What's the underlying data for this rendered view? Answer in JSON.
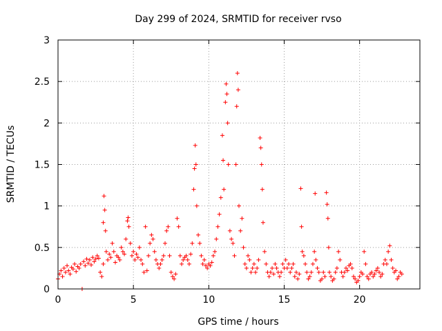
{
  "chart_data": {
    "type": "scatter",
    "title": "Day 299 of 2024, SRMTID for receiver rvso",
    "xlabel": "GPS time / hours",
    "ylabel": "SRMTID / TECUs",
    "xlim": [
      0,
      24
    ],
    "ylim": [
      0,
      3
    ],
    "xticks": [
      0,
      5,
      10,
      15,
      20
    ],
    "yticks": [
      0,
      0.5,
      1,
      1.5,
      2,
      2.5,
      3
    ],
    "xtick_labels": [
      "0",
      "5",
      "10",
      "15",
      "20"
    ],
    "ytick_labels": [
      "0",
      "0.5",
      "1",
      "1.5",
      "2",
      "2.5",
      "3"
    ],
    "grid": true,
    "marker": "plus",
    "color": "#ff0000",
    "series": [
      {
        "name": "SRMTID",
        "points": [
          [
            0.0,
            0.12
          ],
          [
            0.1,
            0.18
          ],
          [
            0.2,
            0.22
          ],
          [
            0.3,
            0.15
          ],
          [
            0.4,
            0.25
          ],
          [
            0.5,
            0.2
          ],
          [
            0.6,
            0.28
          ],
          [
            0.7,
            0.22
          ],
          [
            0.8,
            0.18
          ],
          [
            0.9,
            0.26
          ],
          [
            1.0,
            0.24
          ],
          [
            1.1,
            0.3
          ],
          [
            1.2,
            0.21
          ],
          [
            1.3,
            0.27
          ],
          [
            1.4,
            0.25
          ],
          [
            1.5,
            0.3
          ],
          [
            1.6,
            0.0
          ],
          [
            1.7,
            0.33
          ],
          [
            1.8,
            0.28
          ],
          [
            1.9,
            0.36
          ],
          [
            2.0,
            0.31
          ],
          [
            2.1,
            0.35
          ],
          [
            2.2,
            0.29
          ],
          [
            2.3,
            0.38
          ],
          [
            2.4,
            0.33
          ],
          [
            2.5,
            0.36
          ],
          [
            2.6,
            0.4
          ],
          [
            2.7,
            0.37
          ],
          [
            2.8,
            0.2
          ],
          [
            2.9,
            0.15
          ],
          [
            3.0,
            0.3
          ],
          [
            3.0,
            0.8
          ],
          [
            3.05,
            1.12
          ],
          [
            3.1,
            0.95
          ],
          [
            3.15,
            0.7
          ],
          [
            3.2,
            0.45
          ],
          [
            3.3,
            0.35
          ],
          [
            3.4,
            0.42
          ],
          [
            3.5,
            0.38
          ],
          [
            3.6,
            0.55
          ],
          [
            3.7,
            0.45
          ],
          [
            3.8,
            0.32
          ],
          [
            3.9,
            0.4
          ],
          [
            4.0,
            0.38
          ],
          [
            4.1,
            0.35
          ],
          [
            4.2,
            0.5
          ],
          [
            4.3,
            0.45
          ],
          [
            4.4,
            0.42
          ],
          [
            4.5,
            0.6
          ],
          [
            4.6,
            0.82
          ],
          [
            4.65,
            0.86
          ],
          [
            4.7,
            0.75
          ],
          [
            4.8,
            0.55
          ],
          [
            4.9,
            0.4
          ],
          [
            5.0,
            0.45
          ],
          [
            5.1,
            0.35
          ],
          [
            5.2,
            0.42
          ],
          [
            5.3,
            0.38
          ],
          [
            5.4,
            0.5
          ],
          [
            5.5,
            0.35
          ],
          [
            5.6,
            0.3
          ],
          [
            5.7,
            0.2
          ],
          [
            5.8,
            0.75
          ],
          [
            5.9,
            0.22
          ],
          [
            6.0,
            0.4
          ],
          [
            6.1,
            0.55
          ],
          [
            6.2,
            0.65
          ],
          [
            6.3,
            0.6
          ],
          [
            6.4,
            0.45
          ],
          [
            6.5,
            0.35
          ],
          [
            6.6,
            0.3
          ],
          [
            6.7,
            0.25
          ],
          [
            6.8,
            0.3
          ],
          [
            6.9,
            0.35
          ],
          [
            7.0,
            0.4
          ],
          [
            7.1,
            0.55
          ],
          [
            7.2,
            0.7
          ],
          [
            7.3,
            0.75
          ],
          [
            7.4,
            0.4
          ],
          [
            7.5,
            0.2
          ],
          [
            7.6,
            0.15
          ],
          [
            7.7,
            0.12
          ],
          [
            7.8,
            0.18
          ],
          [
            7.9,
            0.85
          ],
          [
            8.0,
            0.75
          ],
          [
            8.1,
            0.4
          ],
          [
            8.2,
            0.3
          ],
          [
            8.3,
            0.35
          ],
          [
            8.4,
            0.38
          ],
          [
            8.5,
            0.4
          ],
          [
            8.6,
            0.35
          ],
          [
            8.7,
            0.3
          ],
          [
            8.8,
            0.42
          ],
          [
            8.9,
            0.55
          ],
          [
            9.0,
            1.2
          ],
          [
            9.05,
            1.45
          ],
          [
            9.1,
            1.73
          ],
          [
            9.15,
            1.5
          ],
          [
            9.2,
            1.0
          ],
          [
            9.3,
            0.65
          ],
          [
            9.4,
            0.55
          ],
          [
            9.5,
            0.4
          ],
          [
            9.6,
            0.3
          ],
          [
            9.7,
            0.35
          ],
          [
            9.8,
            0.28
          ],
          [
            9.9,
            0.25
          ],
          [
            10.0,
            0.3
          ],
          [
            10.1,
            0.28
          ],
          [
            10.2,
            0.32
          ],
          [
            10.3,
            0.4
          ],
          [
            10.4,
            0.45
          ],
          [
            10.5,
            0.6
          ],
          [
            10.6,
            0.75
          ],
          [
            10.7,
            0.9
          ],
          [
            10.8,
            1.1
          ],
          [
            10.9,
            1.85
          ],
          [
            10.95,
            1.55
          ],
          [
            11.0,
            1.2
          ],
          [
            11.1,
            2.25
          ],
          [
            11.15,
            2.47
          ],
          [
            11.2,
            2.35
          ],
          [
            11.25,
            2.0
          ],
          [
            11.3,
            1.5
          ],
          [
            11.4,
            0.7
          ],
          [
            11.5,
            0.6
          ],
          [
            11.6,
            0.55
          ],
          [
            11.7,
            0.4
          ],
          [
            11.8,
            1.5
          ],
          [
            11.85,
            2.2
          ],
          [
            11.9,
            2.6
          ],
          [
            11.95,
            2.4
          ],
          [
            12.0,
            1.0
          ],
          [
            12.1,
            0.7
          ],
          [
            12.2,
            0.85
          ],
          [
            12.3,
            0.5
          ],
          [
            12.4,
            0.3
          ],
          [
            12.5,
            0.25
          ],
          [
            12.6,
            0.4
          ],
          [
            12.7,
            0.35
          ],
          [
            12.8,
            0.2
          ],
          [
            12.9,
            0.25
          ],
          [
            13.0,
            0.3
          ],
          [
            13.1,
            0.2
          ],
          [
            13.2,
            0.25
          ],
          [
            13.3,
            0.35
          ],
          [
            13.4,
            1.82
          ],
          [
            13.45,
            1.7
          ],
          [
            13.5,
            1.5
          ],
          [
            13.55,
            1.2
          ],
          [
            13.6,
            0.8
          ],
          [
            13.7,
            0.45
          ],
          [
            13.8,
            0.3
          ],
          [
            13.9,
            0.2
          ],
          [
            14.0,
            0.15
          ],
          [
            14.1,
            0.2
          ],
          [
            14.2,
            0.25
          ],
          [
            14.3,
            0.18
          ],
          [
            14.4,
            0.3
          ],
          [
            14.5,
            0.25
          ],
          [
            14.6,
            0.2
          ],
          [
            14.7,
            0.15
          ],
          [
            14.8,
            0.2
          ],
          [
            14.9,
            0.3
          ],
          [
            15.0,
            0.25
          ],
          [
            15.1,
            0.35
          ],
          [
            15.2,
            0.25
          ],
          [
            15.3,
            0.3
          ],
          [
            15.4,
            0.2
          ],
          [
            15.5,
            0.25
          ],
          [
            15.6,
            0.3
          ],
          [
            15.7,
            0.15
          ],
          [
            15.8,
            0.2
          ],
          [
            15.9,
            0.12
          ],
          [
            16.0,
            0.18
          ],
          [
            16.1,
            1.21
          ],
          [
            16.15,
            0.75
          ],
          [
            16.2,
            0.45
          ],
          [
            16.3,
            0.4
          ],
          [
            16.4,
            0.3
          ],
          [
            16.5,
            0.2
          ],
          [
            16.6,
            0.12
          ],
          [
            16.7,
            0.15
          ],
          [
            16.8,
            0.2
          ],
          [
            16.9,
            0.3
          ],
          [
            17.0,
            0.45
          ],
          [
            17.05,
            1.15
          ],
          [
            17.1,
            0.35
          ],
          [
            17.2,
            0.25
          ],
          [
            17.3,
            0.2
          ],
          [
            17.4,
            0.1
          ],
          [
            17.5,
            0.12
          ],
          [
            17.6,
            0.2
          ],
          [
            17.7,
            0.15
          ],
          [
            17.8,
            1.16
          ],
          [
            17.85,
            1.02
          ],
          [
            17.9,
            0.85
          ],
          [
            17.95,
            0.5
          ],
          [
            18.0,
            0.2
          ],
          [
            18.1,
            0.15
          ],
          [
            18.2,
            0.1
          ],
          [
            18.3,
            0.12
          ],
          [
            18.4,
            0.2
          ],
          [
            18.5,
            0.25
          ],
          [
            18.6,
            0.45
          ],
          [
            18.7,
            0.35
          ],
          [
            18.8,
            0.2
          ],
          [
            18.9,
            0.15
          ],
          [
            19.0,
            0.2
          ],
          [
            19.1,
            0.25
          ],
          [
            19.2,
            0.22
          ],
          [
            19.3,
            0.28
          ],
          [
            19.4,
            0.3
          ],
          [
            19.5,
            0.25
          ],
          [
            19.6,
            0.15
          ],
          [
            19.7,
            0.12
          ],
          [
            19.8,
            0.08
          ],
          [
            19.9,
            0.1
          ],
          [
            20.0,
            0.15
          ],
          [
            20.1,
            0.2
          ],
          [
            20.2,
            0.18
          ],
          [
            20.3,
            0.45
          ],
          [
            20.4,
            0.3
          ],
          [
            20.5,
            0.15
          ],
          [
            20.6,
            0.12
          ],
          [
            20.7,
            0.18
          ],
          [
            20.8,
            0.2
          ],
          [
            20.9,
            0.15
          ],
          [
            21.0,
            0.18
          ],
          [
            21.1,
            0.22
          ],
          [
            21.2,
            0.25
          ],
          [
            21.3,
            0.2
          ],
          [
            21.4,
            0.15
          ],
          [
            21.5,
            0.18
          ],
          [
            21.6,
            0.3
          ],
          [
            21.7,
            0.35
          ],
          [
            21.8,
            0.3
          ],
          [
            21.9,
            0.45
          ],
          [
            22.0,
            0.52
          ],
          [
            22.1,
            0.35
          ],
          [
            22.2,
            0.25
          ],
          [
            22.3,
            0.2
          ],
          [
            22.4,
            0.22
          ],
          [
            22.5,
            0.12
          ],
          [
            22.6,
            0.15
          ],
          [
            22.7,
            0.2
          ],
          [
            22.8,
            0.18
          ]
        ]
      }
    ]
  }
}
